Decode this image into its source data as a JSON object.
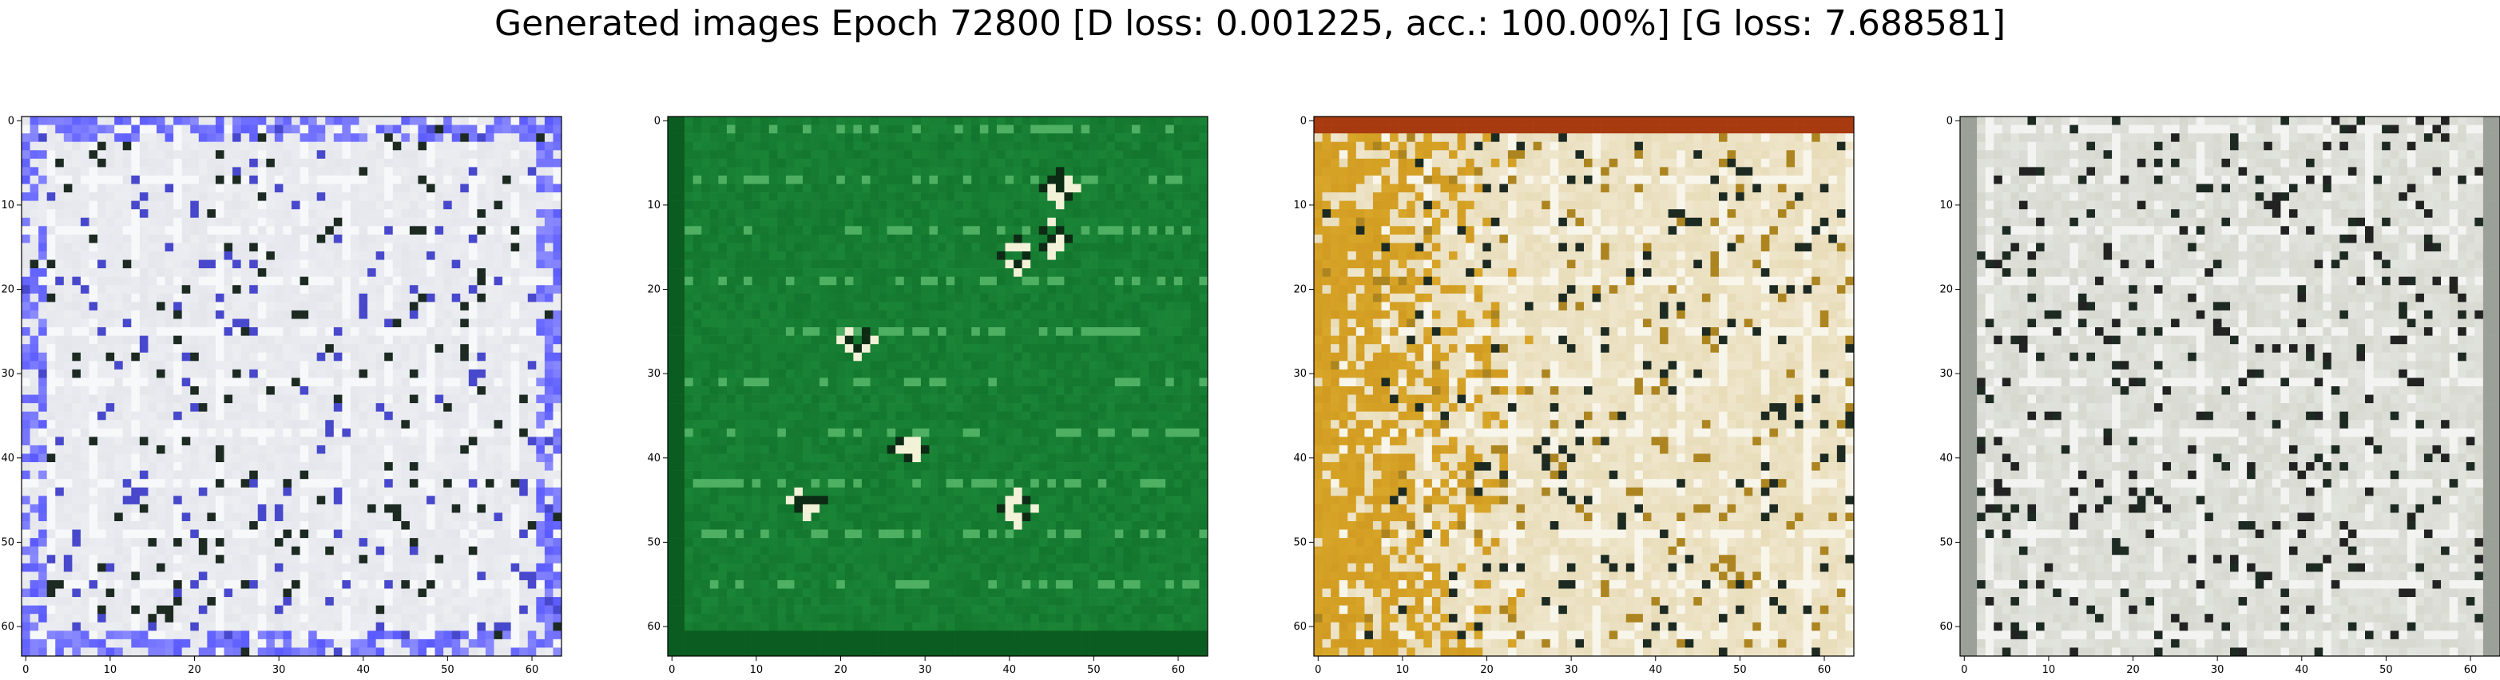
{
  "title": "Generated images Epoch 72800 [D loss: 0.001225, acc.: 100.00%] [G loss: 7.688581]",
  "axes": {
    "x_ticks": [
      "0",
      "10",
      "20",
      "30",
      "40",
      "50",
      "60"
    ],
    "y_ticks": [
      "0",
      "10",
      "20",
      "30",
      "40",
      "50",
      "60"
    ],
    "xlim": [
      -0.5,
      63.5
    ],
    "ylim": [
      63.5,
      -0.5
    ],
    "grid": false
  },
  "panels": [
    {
      "id": "panel-1",
      "style": "blue-white-grid"
    },
    {
      "id": "panel-2",
      "style": "green-field"
    },
    {
      "id": "panel-3",
      "style": "yellow-white-grid"
    },
    {
      "id": "panel-4",
      "style": "gray-white-grid"
    }
  ],
  "colors": {
    "panel_1_base": "#e4e6ec",
    "panel_1_accent": "#5a5aff",
    "panel_2_base": "#1e8c3c",
    "panel_2_accent": "#0f6e28",
    "panel_3_base": "#e8dcb8",
    "panel_3_accent": "#d8a628",
    "panel_4_base": "#d6d8d0",
    "panel_4_accent": "#2a2a2a"
  }
}
